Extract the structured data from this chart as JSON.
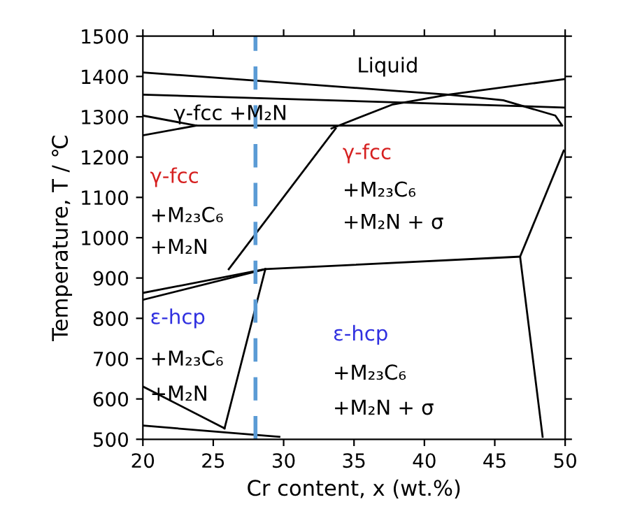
{
  "chart_data": {
    "type": "line",
    "xlabel": "Cr content, x (wt.%)",
    "ylabel": "Temperature, T / ℃",
    "xlim": [
      20,
      50
    ],
    "xticks": [
      20,
      25,
      30,
      35,
      40,
      45,
      50
    ],
    "ylim": [
      500,
      1500
    ],
    "yticks": [
      500,
      600,
      700,
      800,
      900,
      1000,
      1100,
      1200,
      1300,
      1400,
      1500
    ],
    "grid": false,
    "legend": false,
    "marker": "none",
    "line_style": "solid",
    "series": [
      {
        "color": "#000000",
        "x": [
          20,
          37.7,
          41.7,
          49.9
        ],
        "values": [
          1410,
          1365,
          1355,
          1393
        ]
      },
      {
        "color": "#000000",
        "x": [
          20,
          49.9
        ],
        "values": [
          1355,
          1323
        ]
      },
      {
        "color": "#000000",
        "x": [
          33.4,
          37.7,
          41.7,
          45.6,
          49.3,
          49.8,
          23.8,
          20
        ],
        "values": [
          1271,
          1330,
          1355,
          1341,
          1303,
          1278,
          1278,
          1303
        ]
      },
      {
        "color": "#000000",
        "x": [
          20,
          23.8
        ],
        "values": [
          1254,
          1278
        ]
      },
      {
        "color": "#000000",
        "x": [
          33.7,
          26.1
        ],
        "values": [
          1271,
          922
        ]
      },
      {
        "color": "#000000",
        "x": [
          20,
          28.7,
          46.8
        ],
        "values": [
          863,
          922,
          953
        ]
      },
      {
        "color": "#000000",
        "x": [
          20,
          28.7
        ],
        "values": [
          846,
          922
        ]
      },
      {
        "color": "#000000",
        "x": [
          49.9,
          46.8,
          48.4
        ],
        "values": [
          1216,
          953,
          506
        ]
      },
      {
        "color": "#000000",
        "x": [
          28.7,
          25.8
        ],
        "values": [
          922,
          527
        ]
      },
      {
        "color": "#000000",
        "x": [
          20,
          25.8
        ],
        "values": [
          631,
          527
        ]
      },
      {
        "color": "#000000",
        "x": [
          20,
          29.7
        ],
        "values": [
          534,
          506
        ]
      }
    ],
    "ref_lines": [
      {
        "axis": "x",
        "value": 28.0,
        "label": null,
        "color": "#5b9bd5",
        "line_style": "dashed"
      }
    ],
    "annotations": [
      "Liquid",
      "γ-fcc +M₂N",
      "γ-fcc",
      "+M₂₃C₆",
      "+M₂N",
      "γ-fcc",
      "+M₂₃C₆",
      "+M₂N + σ",
      "ε-hcp",
      "+M₂₃C₆",
      "+M₂N",
      "ε-hcp",
      "+M₂₃C₆",
      "+M₂N + σ"
    ]
  }
}
